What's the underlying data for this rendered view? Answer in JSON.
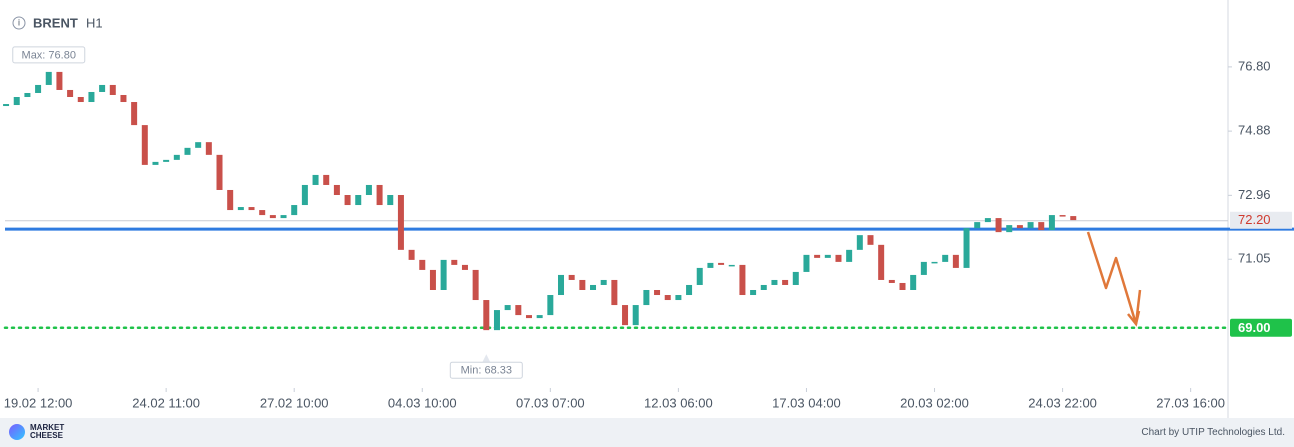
{
  "chart_data": {
    "type": "candlestick",
    "symbol": "BRENT",
    "timeframe": "H1",
    "values": [
      75.66,
      75.9,
      76.02,
      76.26,
      76.65,
      76.11,
      75.9,
      75.75,
      76.05,
      76.26,
      75.96,
      75.75,
      75.06,
      73.87,
      73.96,
      74.02,
      74.17,
      74.38,
      74.55,
      74.17,
      73.12,
      72.52,
      72.61,
      72.52,
      72.37,
      72.28,
      72.37,
      72.67,
      73.27,
      73.57,
      73.27,
      72.97,
      72.67,
      72.97,
      73.27,
      72.67,
      72.97,
      71.33,
      71.03,
      70.73,
      70.13,
      71.03,
      70.88,
      70.73,
      69.83,
      68.93,
      69.53,
      69.68,
      69.38,
      69.29,
      69.38,
      69.98,
      70.58,
      70.43,
      70.13,
      70.28,
      70.43,
      69.68,
      69.08,
      69.68,
      70.13,
      69.98,
      69.83,
      69.98,
      70.28,
      70.79,
      70.94,
      70.88,
      70.88,
      69.98,
      70.13,
      70.28,
      70.43,
      70.28,
      70.67,
      71.18,
      71.09,
      71.18,
      70.97,
      71.33,
      71.77,
      71.48,
      70.43,
      70.34,
      70.13,
      70.58,
      70.97,
      70.97,
      71.18,
      70.79,
      71.98,
      72.16,
      72.28,
      71.86,
      72.07,
      71.98,
      72.16,
      71.92,
      72.37,
      72.34,
      72.22
    ],
    "up_color": "#2aa99a",
    "down_color": "#c9504a",
    "xlim": [
      -0.1,
      114.5
    ],
    "xticks": [
      {
        "value": 3,
        "label": "19.02 12:00"
      },
      {
        "value": 15,
        "label": "24.02 11:00"
      },
      {
        "value": 27,
        "label": "27.02 10:00"
      },
      {
        "value": 39,
        "label": "04.03 10:00"
      },
      {
        "value": 51,
        "label": "07.03 07:00"
      },
      {
        "value": 63,
        "label": "12.03 06:00"
      },
      {
        "value": 75,
        "label": "17.03 04:00"
      },
      {
        "value": 87,
        "label": "20.03 02:00"
      },
      {
        "value": 99,
        "label": "24.03 22:00"
      },
      {
        "value": 111,
        "label": "27.03 16:00"
      }
    ],
    "ylim": [
      67.2,
      78.8
    ],
    "yticks": [
      {
        "value": 76.8,
        "label": "76.80"
      },
      74.88,
      72.96,
      71.05
    ],
    "support": {
      "value": 71.95,
      "color": "#2f7be0"
    },
    "target": {
      "value": 69,
      "label": "69.00",
      "color": "#1fc24a"
    },
    "last_price": {
      "value": 72.2,
      "label": "72.20"
    },
    "max": {
      "value": 76.8,
      "x": 4,
      "label": "Max: 76.80"
    },
    "min": {
      "value": 68.33,
      "x": 45,
      "label": "Min: 68.33"
    }
  },
  "footer": {
    "logo": "MARKET CHEESE",
    "credit": "Chart by UTIP Technologies Ltd."
  }
}
